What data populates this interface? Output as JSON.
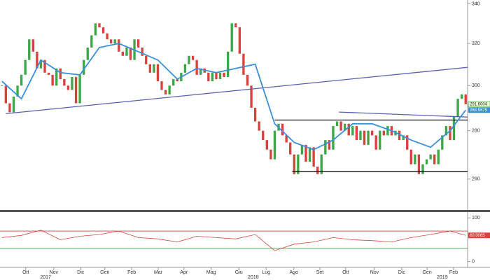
{
  "chart_data": [
    {
      "type": "candlestick",
      "values": [
        300,
        292,
        288,
        295,
        300,
        305,
        312,
        322,
        316,
        308,
        312,
        306,
        305,
        300,
        308,
        303,
        300,
        298,
        304,
        292,
        305,
        312,
        318,
        324,
        330,
        328,
        325,
        322,
        320,
        322,
        316,
        314,
        318,
        312,
        322,
        318,
        314,
        310,
        306,
        310,
        302,
        298,
        296,
        300,
        303,
        302,
        306,
        310,
        314,
        312,
        305,
        308,
        306,
        302,
        306,
        303,
        306,
        304,
        316,
        330,
        328,
        315,
        305,
        300,
        290,
        284,
        280,
        276,
        272,
        268,
        280,
        283,
        278,
        275,
        270,
        262,
        270,
        274,
        267,
        273,
        265,
        262,
        270,
        276,
        272,
        282,
        284,
        280,
        283,
        278,
        282,
        276,
        280,
        274,
        280,
        278,
        272,
        280,
        278,
        282,
        278,
        280,
        276,
        278,
        272,
        266,
        270,
        262,
        266,
        268,
        270,
        266,
        272,
        278,
        282,
        276,
        286,
        294,
        296,
        291.6004
      ],
      "up_color": "#3aa845",
      "down_color": "#d9413c",
      "xlim": [
        0,
        120
      ],
      "ylim": [
        248,
        342
      ],
      "log": true,
      "yticks": [
        260,
        280,
        300,
        320,
        340
      ],
      "xticks": [
        {
          "value": 6.6,
          "label": "Ott"
        },
        {
          "value": 13.8,
          "label": "Nov"
        },
        {
          "value": 20.7,
          "label": "Dic"
        },
        {
          "value": 26.9,
          "label": "Gen"
        },
        {
          "value": 33.8,
          "label": "Feb"
        },
        {
          "value": 40.6,
          "label": "Mar"
        },
        {
          "value": 47.2,
          "label": "Apr"
        },
        {
          "value": 54.2,
          "label": "Mag"
        },
        {
          "value": 61.3,
          "label": "Giu"
        },
        {
          "value": 68.3,
          "label": "Lug"
        },
        {
          "value": 75.4,
          "label": "Ago"
        },
        {
          "value": 82.1,
          "label": "Set"
        },
        {
          "value": 88.7,
          "label": "Ott"
        },
        {
          "value": 96.1,
          "label": "Nov"
        },
        {
          "value": 103.1,
          "label": "Dic"
        },
        {
          "value": 109.6,
          "label": "Gen"
        },
        {
          "value": 116.4,
          "label": "Feb"
        }
      ],
      "year_ticks": [
        {
          "value": 11.7,
          "label": "2017"
        },
        {
          "value": 65,
          "label": "2018"
        },
        {
          "value": 113.5,
          "label": "2019"
        }
      ],
      "series": [
        {
          "color": "#3a8fd9",
          "x": [
            0,
            5,
            10,
            15,
            20,
            25,
            30,
            35,
            40,
            45,
            50,
            55,
            60,
            65,
            70,
            75,
            80,
            85,
            90,
            95,
            100,
            105,
            110,
            115,
            119
          ],
          "values": [
            302,
            294,
            312,
            306,
            305,
            318,
            320,
            316,
            312,
            303,
            308,
            306,
            308,
            310,
            283,
            275,
            272,
            276,
            283,
            283,
            280,
            276,
            273,
            280,
            288.9675
          ]
        }
      ],
      "lines": [
        {
          "color": "#5b5fb0",
          "x": [
            1.5,
            120
          ],
          "values": [
            287.4,
            308.5
          ]
        },
        {
          "color": "#5b5fb0",
          "x": [
            87,
            120
          ],
          "values": [
            288.1,
            285.9
          ]
        },
        {
          "color": "#111111",
          "x": [
            70.5,
            120
          ],
          "values": [
            284.6,
            284.6
          ]
        },
        {
          "color": "#111111",
          "x": [
            75,
            120
          ],
          "values": [
            263,
            263
          ]
        }
      ]
    },
    {
      "type": "line",
      "x": [
        0,
        5,
        10,
        15,
        20,
        25,
        30,
        35,
        40,
        45,
        50,
        55,
        60,
        65,
        70,
        75,
        80,
        85,
        90,
        95,
        100,
        105,
        110,
        115,
        119
      ],
      "values": [
        55,
        60,
        72,
        50,
        58,
        62,
        70,
        55,
        52,
        45,
        58,
        55,
        52,
        62,
        25,
        40,
        45,
        55,
        50,
        48,
        45,
        55,
        62,
        70,
        60.0065
      ],
      "color": "#d9413c",
      "xlim": [
        0,
        120
      ],
      "ylim": [
        -13.5,
        113.5
      ],
      "yticks": [
        0,
        100
      ],
      "levels": [
        {
          "value": 70,
          "color": "#d9413c"
        },
        {
          "value": 30,
          "color": "#3aa845"
        }
      ]
    }
  ]
}
